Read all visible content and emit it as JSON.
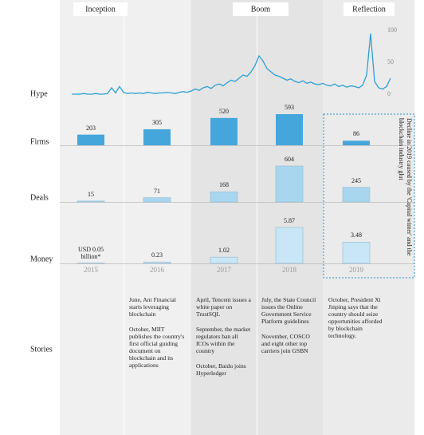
{
  "chart_data": {
    "type": "bar",
    "phases": [
      "Inception",
      "Boom",
      "Reflection"
    ],
    "categories": [
      "2015",
      "2016",
      "2017",
      "2018",
      "2019"
    ],
    "hype": {
      "label": "Hype",
      "color": "#2a9fd6",
      "values": [
        0,
        0,
        0,
        1,
        0,
        0,
        1,
        0,
        0,
        1,
        10,
        2,
        12,
        3,
        1,
        2,
        1,
        2,
        1,
        3,
        2,
        1,
        2,
        2,
        3,
        2,
        1,
        3,
        4,
        3,
        5,
        8,
        6,
        10,
        12,
        9,
        14,
        16,
        13,
        18,
        22,
        20,
        25,
        30,
        28,
        35,
        45,
        60,
        52,
        40,
        35,
        30,
        28,
        25,
        22,
        24,
        20,
        18,
        21,
        17,
        19,
        16,
        15,
        17,
        14,
        13,
        16,
        12,
        14,
        11,
        13,
        12,
        10,
        14,
        30,
        95,
        20,
        10,
        8,
        12,
        25
      ],
      "ylim": [
        0,
        100
      ],
      "yticks": [
        0,
        50,
        100
      ]
    },
    "series": [
      {
        "name": "Firms",
        "color": "#45a6dc",
        "values": [
          203,
          305,
          520,
          593,
          86
        ]
      },
      {
        "name": "Deals",
        "color": "#a9d6ef",
        "values": [
          15,
          71,
          168,
          604,
          245
        ]
      },
      {
        "name": "Money",
        "color": "#c8e6f6",
        "values": [
          0.05,
          0.23,
          1.02,
          5.87,
          3.48
        ],
        "value_labels": [
          "USD 0.05 billion*",
          "0.23",
          "1.02",
          "5.87",
          "3.48"
        ]
      }
    ],
    "annotation": "Decline in 2019 caused by the 'Capital winter' and the blockchain industry glut",
    "stories_label": "Stories",
    "stories": [
      [
        "June, Ant Financial starts leveraging blockchain",
        "October, MIIT publishes the country's first official guiding document on blockchain and its applications"
      ],
      [
        "April, Tencent issues a white paper on TrustSQL",
        "September, the market regulators ban all ICOs within the country",
        "October, Baidu joins Hyperledger"
      ],
      [
        "July, the State Council issues the Online Government Service Platform guidelines",
        "November, COSCO and eight other top carriers join GSBN"
      ],
      [
        "October, President Xi Jinping says that the country should seize opportunities afforded by blockchain technology."
      ]
    ]
  }
}
